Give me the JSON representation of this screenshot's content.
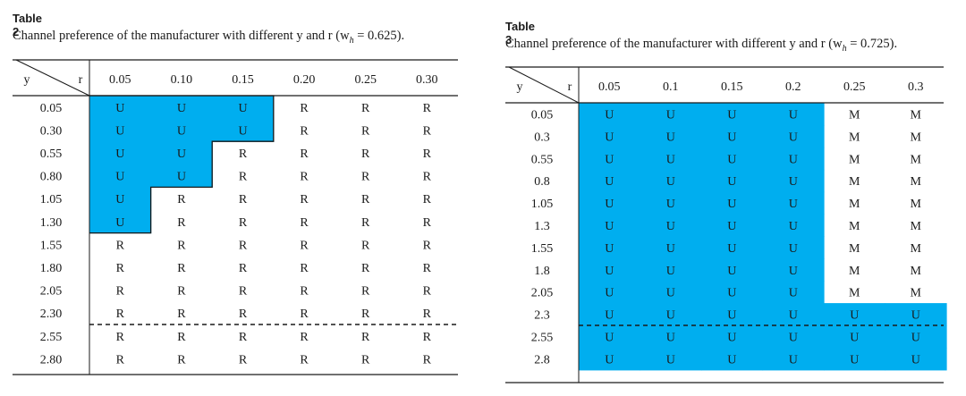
{
  "table2": {
    "label": "Table 2",
    "caption": "Channel preference of the manufacturer with different y and r (w",
    "caption_sub": "h",
    "caption_tail": " = 0.625).",
    "corner_y": "y",
    "corner_r": "r",
    "columns": [
      "0.05",
      "0.10",
      "0.15",
      "0.20",
      "0.25",
      "0.30"
    ],
    "rows": [
      {
        "y": "0.05",
        "cells": [
          "U",
          "U",
          "U",
          "R",
          "R",
          "R"
        ]
      },
      {
        "y": "0.30",
        "cells": [
          "U",
          "U",
          "U",
          "R",
          "R",
          "R"
        ]
      },
      {
        "y": "0.55",
        "cells": [
          "U",
          "U",
          "R",
          "R",
          "R",
          "R"
        ]
      },
      {
        "y": "0.80",
        "cells": [
          "U",
          "U",
          "R",
          "R",
          "R",
          "R"
        ]
      },
      {
        "y": "1.05",
        "cells": [
          "U",
          "R",
          "R",
          "R",
          "R",
          "R"
        ]
      },
      {
        "y": "1.30",
        "cells": [
          "U",
          "R",
          "R",
          "R",
          "R",
          "R"
        ]
      },
      {
        "y": "1.55",
        "cells": [
          "R",
          "R",
          "R",
          "R",
          "R",
          "R"
        ]
      },
      {
        "y": "1.80",
        "cells": [
          "R",
          "R",
          "R",
          "R",
          "R",
          "R"
        ]
      },
      {
        "y": "2.05",
        "cells": [
          "R",
          "R",
          "R",
          "R",
          "R",
          "R"
        ]
      },
      {
        "y": "2.30",
        "cells": [
          "R",
          "R",
          "R",
          "R",
          "R",
          "R"
        ]
      },
      {
        "y": "2.55",
        "cells": [
          "R",
          "R",
          "R",
          "R",
          "R",
          "R"
        ]
      },
      {
        "y": "2.80",
        "cells": [
          "R",
          "R",
          "R",
          "R",
          "R",
          "R"
        ]
      }
    ]
  },
  "table3": {
    "label": "Table 3",
    "caption": "Channel preference of the manufacturer with different y and r (w",
    "caption_sub": "h",
    "caption_tail": " = 0.725).",
    "corner_y": "y",
    "corner_r": "r",
    "columns": [
      "0.05",
      "0.1",
      "0.15",
      "0.2",
      "0.25",
      "0.3"
    ],
    "rows": [
      {
        "y": "0.05",
        "cells": [
          "U",
          "U",
          "U",
          "U",
          "M",
          "M"
        ]
      },
      {
        "y": "0.3",
        "cells": [
          "U",
          "U",
          "U",
          "U",
          "M",
          "M"
        ]
      },
      {
        "y": "0.55",
        "cells": [
          "U",
          "U",
          "U",
          "U",
          "M",
          "M"
        ]
      },
      {
        "y": "0.8",
        "cells": [
          "U",
          "U",
          "U",
          "U",
          "M",
          "M"
        ]
      },
      {
        "y": "1.05",
        "cells": [
          "U",
          "U",
          "U",
          "U",
          "M",
          "M"
        ]
      },
      {
        "y": "1.3",
        "cells": [
          "U",
          "U",
          "U",
          "U",
          "M",
          "M"
        ]
      },
      {
        "y": "1.55",
        "cells": [
          "U",
          "U",
          "U",
          "U",
          "M",
          "M"
        ]
      },
      {
        "y": "1.8",
        "cells": [
          "U",
          "U",
          "U",
          "U",
          "M",
          "M"
        ]
      },
      {
        "y": "2.05",
        "cells": [
          "U",
          "U",
          "U",
          "U",
          "M",
          "M"
        ]
      },
      {
        "y": "2.3",
        "cells": [
          "U",
          "U",
          "U",
          "U",
          "U",
          "U"
        ]
      },
      {
        "y": "2.55",
        "cells": [
          "U",
          "U",
          "U",
          "U",
          "U",
          "U"
        ]
      },
      {
        "y": "2.8",
        "cells": [
          "U",
          "U",
          "U",
          "U",
          "U",
          "U"
        ]
      }
    ]
  },
  "colors": {
    "highlight": "#00aeef",
    "rule": "#1a1a1a"
  }
}
